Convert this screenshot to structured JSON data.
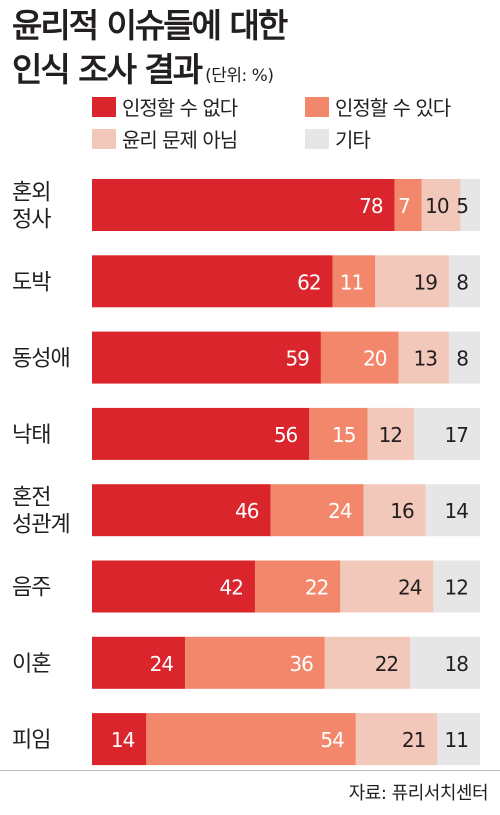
{
  "header": {
    "title_line1": "윤리적 이슈들에 대한",
    "title_line2": "인식 조사 결과",
    "unit": "(단위: %)"
  },
  "colors": {
    "unacceptable": "#d9252b",
    "acceptable": "#f2876b",
    "not_moral_issue": "#f1c8b9",
    "other": "#e6e6e6"
  },
  "footer": {
    "source": "자료: 퓨리서치센터"
  },
  "chart_data": {
    "type": "bar",
    "orientation": "horizontal",
    "stacked": true,
    "categories": [
      [
        "혼외",
        "정사"
      ],
      [
        "도박"
      ],
      [
        "동성애"
      ],
      [
        "낙태"
      ],
      [
        "혼전",
        "성관계"
      ],
      [
        "음주"
      ],
      [
        "이혼"
      ],
      [
        "피임"
      ]
    ],
    "series": [
      {
        "name": "인정할 수 없다",
        "color": "#d9252b",
        "label_color": "#ffffff",
        "values": [
          78,
          62,
          59,
          56,
          46,
          42,
          24,
          14
        ]
      },
      {
        "name": "인정할 수 있다",
        "color": "#f2876b",
        "label_color": "#ffffff",
        "values": [
          7,
          11,
          20,
          15,
          24,
          22,
          36,
          54
        ]
      },
      {
        "name": "윤리 문제 아님",
        "color": "#f1c8b9",
        "label_color": "#231f20",
        "values": [
          10,
          19,
          13,
          12,
          16,
          24,
          22,
          21
        ]
      },
      {
        "name": "기타",
        "color": "#e6e6e6",
        "label_color": "#231f20",
        "values": [
          5,
          8,
          8,
          17,
          14,
          12,
          18,
          11
        ]
      }
    ],
    "xlim": [
      0,
      100
    ],
    "grid": false,
    "legend_position": "top"
  }
}
